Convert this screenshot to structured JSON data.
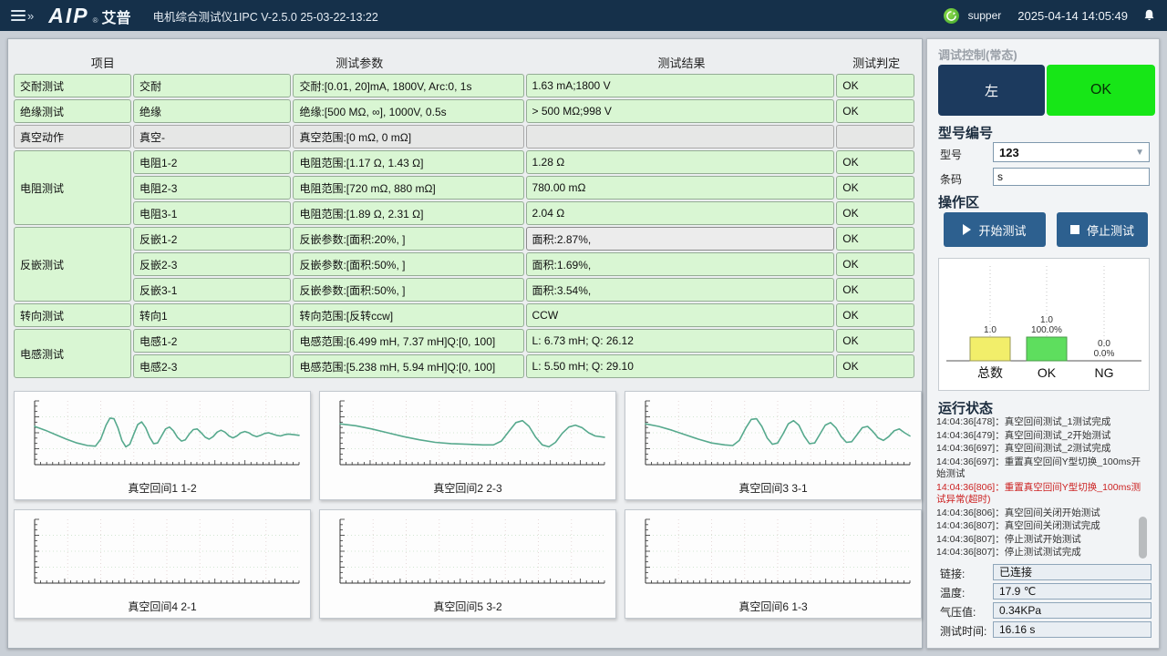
{
  "topbar": {
    "brand": "AIP",
    "brand_reg": "®",
    "brand_cn": "艾普",
    "title": "电机综合测试仪1IPC V-2.5.0 25-03-22-13:22",
    "user": "supper",
    "datetime": "2025-04-14 14:05:49"
  },
  "table": {
    "headers": [
      "项目",
      "测试参数",
      "测试结果",
      "测试判定"
    ],
    "groups": [
      {
        "name": "交耐测试",
        "rows": [
          {
            "item": "交耐",
            "param": "交耐:[0.01, 20]mA, 1800V, Arc:0, 1s",
            "result": "1.63 mA;1800 V",
            "judge": "OK"
          }
        ]
      },
      {
        "name": "绝缘测试",
        "rows": [
          {
            "item": "绝缘",
            "param": "绝缘:[500 MΩ, ∞], 1000V, 0.5s",
            "result": "> 500 MΩ;998 V",
            "judge": "OK"
          }
        ]
      },
      {
        "name": "真空动作",
        "gray": true,
        "rows": [
          {
            "item": "真空-",
            "param": "真空范围:[0 mΩ, 0 mΩ]",
            "result": "",
            "judge": ""
          }
        ]
      },
      {
        "name": "电阻测试",
        "rows": [
          {
            "item": "电阻1-2",
            "param": "电阻范围:[1.17 Ω, 1.43 Ω]",
            "result": "1.28 Ω",
            "judge": "OK"
          },
          {
            "item": "电阻2-3",
            "param": "电阻范围:[720 mΩ, 880 mΩ]",
            "result": "780.00 mΩ",
            "judge": "OK"
          },
          {
            "item": "电阻3-1",
            "param": "电阻范围:[1.89 Ω, 2.31 Ω]",
            "result": "2.04 Ω",
            "judge": "OK"
          }
        ]
      },
      {
        "name": "反嵌测试",
        "rows": [
          {
            "item": "反嵌1-2",
            "param": "反嵌参数:[面积:20%, ]",
            "result": "面积:2.87%,",
            "judge": "OK",
            "selected": true
          },
          {
            "item": "反嵌2-3",
            "param": "反嵌参数:[面积:50%, ]",
            "result": "面积:1.69%,",
            "judge": "OK"
          },
          {
            "item": "反嵌3-1",
            "param": "反嵌参数:[面积:50%, ]",
            "result": "面积:3.54%,",
            "judge": "OK"
          }
        ]
      },
      {
        "name": "转向测试",
        "rows": [
          {
            "item": "转向1",
            "param": "转向范围:[反转ccw]",
            "result": "CCW",
            "judge": "OK"
          }
        ]
      },
      {
        "name": "电感测试",
        "rows": [
          {
            "item": "电感1-2",
            "param": "电感范围:[6.499 mH, 7.37 mH]Q:[0, 100]",
            "result": "L: 6.73 mH; Q: 26.12",
            "judge": "OK"
          },
          {
            "item": "电感2-3",
            "param": "电感范围:[5.238 mH, 5.94 mH]Q:[0, 100]",
            "result": "L: 5.50 mH; Q: 29.10",
            "judge": "OK"
          }
        ]
      }
    ]
  },
  "waveforms": {
    "line_color": "#56a98d",
    "charts": [
      {
        "label": "真空回间1 1-2",
        "points": [
          [
            0,
            0.4
          ],
          [
            0.04,
            0.46
          ],
          [
            0.08,
            0.53
          ],
          [
            0.12,
            0.6
          ],
          [
            0.16,
            0.66
          ],
          [
            0.2,
            0.7
          ],
          [
            0.23,
            0.71
          ],
          [
            0.25,
            0.6
          ],
          [
            0.27,
            0.38
          ],
          [
            0.285,
            0.27
          ],
          [
            0.3,
            0.28
          ],
          [
            0.315,
            0.42
          ],
          [
            0.33,
            0.62
          ],
          [
            0.345,
            0.72
          ],
          [
            0.36,
            0.68
          ],
          [
            0.375,
            0.52
          ],
          [
            0.39,
            0.37
          ],
          [
            0.405,
            0.33
          ],
          [
            0.42,
            0.42
          ],
          [
            0.435,
            0.57
          ],
          [
            0.45,
            0.67
          ],
          [
            0.465,
            0.66
          ],
          [
            0.48,
            0.55
          ],
          [
            0.495,
            0.44
          ],
          [
            0.51,
            0.41
          ],
          [
            0.525,
            0.47
          ],
          [
            0.54,
            0.57
          ],
          [
            0.555,
            0.63
          ],
          [
            0.57,
            0.61
          ],
          [
            0.585,
            0.52
          ],
          [
            0.6,
            0.45
          ],
          [
            0.615,
            0.44
          ],
          [
            0.63,
            0.5
          ],
          [
            0.645,
            0.57
          ],
          [
            0.66,
            0.6
          ],
          [
            0.675,
            0.56
          ],
          [
            0.69,
            0.49
          ],
          [
            0.705,
            0.46
          ],
          [
            0.72,
            0.49
          ],
          [
            0.735,
            0.55
          ],
          [
            0.75,
            0.58
          ],
          [
            0.765,
            0.55
          ],
          [
            0.78,
            0.5
          ],
          [
            0.795,
            0.48
          ],
          [
            0.81,
            0.5
          ],
          [
            0.825,
            0.54
          ],
          [
            0.84,
            0.56
          ],
          [
            0.855,
            0.54
          ],
          [
            0.87,
            0.51
          ],
          [
            0.885,
            0.5
          ],
          [
            0.9,
            0.52
          ],
          [
            0.915,
            0.54
          ],
          [
            0.93,
            0.55
          ],
          [
            0.945,
            0.53
          ],
          [
            0.96,
            0.52
          ],
          [
            0.98,
            0.53
          ],
          [
            1,
            0.54
          ]
        ]
      },
      {
        "label": "真空回间2 2-3",
        "points": [
          [
            0,
            0.36
          ],
          [
            0.06,
            0.39
          ],
          [
            0.12,
            0.44
          ],
          [
            0.18,
            0.5
          ],
          [
            0.24,
            0.56
          ],
          [
            0.3,
            0.61
          ],
          [
            0.36,
            0.65
          ],
          [
            0.42,
            0.67
          ],
          [
            0.48,
            0.68
          ],
          [
            0.54,
            0.69
          ],
          [
            0.58,
            0.69
          ],
          [
            0.61,
            0.63
          ],
          [
            0.64,
            0.47
          ],
          [
            0.665,
            0.34
          ],
          [
            0.69,
            0.31
          ],
          [
            0.715,
            0.4
          ],
          [
            0.74,
            0.57
          ],
          [
            0.765,
            0.69
          ],
          [
            0.79,
            0.72
          ],
          [
            0.815,
            0.65
          ],
          [
            0.84,
            0.51
          ],
          [
            0.865,
            0.41
          ],
          [
            0.89,
            0.38
          ],
          [
            0.915,
            0.42
          ],
          [
            0.94,
            0.5
          ],
          [
            0.965,
            0.55
          ],
          [
            1,
            0.57
          ]
        ]
      },
      {
        "label": "真空回间3 3-1",
        "points": [
          [
            0,
            0.36
          ],
          [
            0.05,
            0.4
          ],
          [
            0.1,
            0.46
          ],
          [
            0.15,
            0.53
          ],
          [
            0.2,
            0.6
          ],
          [
            0.25,
            0.66
          ],
          [
            0.3,
            0.69
          ],
          [
            0.33,
            0.7
          ],
          [
            0.355,
            0.62
          ],
          [
            0.38,
            0.42
          ],
          [
            0.4,
            0.29
          ],
          [
            0.42,
            0.28
          ],
          [
            0.44,
            0.4
          ],
          [
            0.46,
            0.58
          ],
          [
            0.48,
            0.68
          ],
          [
            0.5,
            0.66
          ],
          [
            0.52,
            0.52
          ],
          [
            0.54,
            0.36
          ],
          [
            0.56,
            0.31
          ],
          [
            0.58,
            0.38
          ],
          [
            0.6,
            0.55
          ],
          [
            0.62,
            0.67
          ],
          [
            0.64,
            0.66
          ],
          [
            0.66,
            0.52
          ],
          [
            0.68,
            0.38
          ],
          [
            0.7,
            0.34
          ],
          [
            0.72,
            0.42
          ],
          [
            0.74,
            0.56
          ],
          [
            0.76,
            0.65
          ],
          [
            0.78,
            0.64
          ],
          [
            0.8,
            0.53
          ],
          [
            0.82,
            0.42
          ],
          [
            0.84,
            0.4
          ],
          [
            0.86,
            0.48
          ],
          [
            0.88,
            0.58
          ],
          [
            0.9,
            0.62
          ],
          [
            0.92,
            0.56
          ],
          [
            0.94,
            0.47
          ],
          [
            0.96,
            0.44
          ],
          [
            0.98,
            0.5
          ],
          [
            1,
            0.55
          ]
        ]
      },
      {
        "label": "真空回间4 2-1",
        "points": []
      },
      {
        "label": "真空回间5 3-2",
        "points": []
      },
      {
        "label": "真空回间6 1-3",
        "points": []
      }
    ]
  },
  "sidebar": {
    "debug_title": "调试控制(常态)",
    "left_button": "左",
    "ok_button": "OK",
    "model_section": "型号编号",
    "model_label": "型号",
    "model_value": "123",
    "barcode_label": "条码",
    "barcode_value": "s",
    "action_section": "操作区",
    "start_button": "开始测试",
    "stop_button": "停止测试",
    "stats": {
      "type": "bar",
      "categories": [
        "总数",
        "OK",
        "NG"
      ],
      "values": [
        1,
        1,
        0
      ],
      "count_labels": [
        "1.0",
        "1.0",
        "0.0"
      ],
      "pct_labels": [
        "",
        "100.0%",
        "0.0%"
      ],
      "bar_fills": [
        "#f2ee6a",
        "#5ede5e",
        "none"
      ],
      "bar_strokes": [
        "#9a9a55",
        "#4a9a4a",
        "none"
      ]
    },
    "status_title": "运行状态",
    "log": [
      {
        "text": "14:04:36[478]：真空回间测试_1测试完成",
        "error": false
      },
      {
        "text": "14:04:36[479]：真空回间测试_2开始测试",
        "error": false
      },
      {
        "text": "14:04:36[697]：真空回间测试_2测试完成",
        "error": false
      },
      {
        "text": "14:04:36[697]：重置真空回间Y型切换_100ms开始测试",
        "error": false
      },
      {
        "text": "14:04:36[806]：重置真空回间Y型切换_100ms测试异常(超时)",
        "error": true
      },
      {
        "text": "14:04:36[806]：真空回间关闭开始测试",
        "error": false
      },
      {
        "text": "14:04:36[807]：真空回间关闭测试完成",
        "error": false
      },
      {
        "text": "14:04:36[807]：停止测试开始测试",
        "error": false
      },
      {
        "text": "14:04:36[807]：停止测试测试完成",
        "error": false
      }
    ],
    "fields": [
      {
        "label": "链接:",
        "value": "已连接"
      },
      {
        "label": "温度:",
        "value": "17.9 ℃"
      },
      {
        "label": "气压值:",
        "value": "0.34KPa"
      },
      {
        "label": "测试时间:",
        "value": "16.16 s"
      }
    ]
  },
  "icons": {
    "menu": "hamburger",
    "bell": "notification-bell",
    "user": "user-badge-green",
    "play": "play-triangle",
    "stop": "stop-square",
    "dropdown": "▾"
  }
}
